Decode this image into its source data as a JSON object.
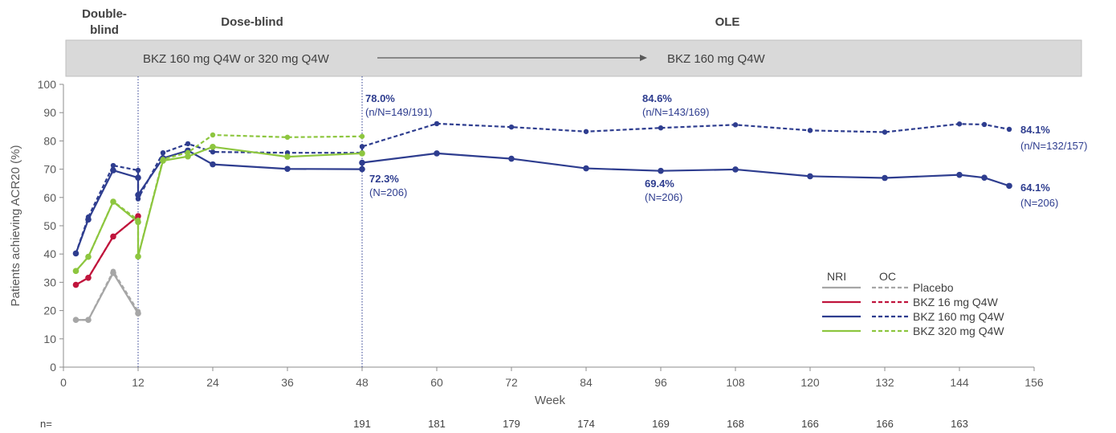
{
  "phases": {
    "double_blind_line1": "Double-",
    "double_blind_line2": "blind",
    "dose_blind": "Dose-blind",
    "ole": "OLE"
  },
  "banner": {
    "left": "BKZ 160 mg Q4W or 320 mg Q4W",
    "right": "BKZ 160 mg Q4W",
    "color": "#d9d9d9"
  },
  "annotations": {
    "oc_w48_pct": "78.0%",
    "oc_w48_n": "(n/N=149/191)",
    "nri_w48_pct": "72.3%",
    "nri_w48_n": "(N=206)",
    "oc_w96_pct": "84.6%",
    "oc_w96_n": "(n/N=143/169)",
    "nri_w96_pct": "69.4%",
    "nri_w96_n": "(N=206)",
    "oc_end_pct": "84.1%",
    "oc_end_n": "(n/N=132/157)",
    "nri_end_pct": "64.1%",
    "nri_end_n": "(N=206)"
  },
  "legend": {
    "nri_header": "NRI",
    "oc_header": "OC"
  },
  "n_row": {
    "label": "n=",
    "values": [
      {
        "week": 48,
        "n": "191"
      },
      {
        "week": 60,
        "n": "181"
      },
      {
        "week": 72,
        "n": "179"
      },
      {
        "week": 84,
        "n": "174"
      },
      {
        "week": 96,
        "n": "169"
      },
      {
        "week": 108,
        "n": "168"
      },
      {
        "week": 120,
        "n": "166"
      },
      {
        "week": 132,
        "n": "166"
      },
      {
        "week": 144,
        "n": "163"
      }
    ]
  },
  "chart_data": {
    "type": "line",
    "xlabel": "Week",
    "ylabel": "Patients achieving ACR20 (%)",
    "xlim": [
      0,
      156
    ],
    "ylim": [
      0,
      100
    ],
    "xticks": [
      0,
      12,
      24,
      36,
      48,
      60,
      72,
      84,
      96,
      108,
      120,
      132,
      144,
      156
    ],
    "yticks": [
      0,
      10,
      20,
      30,
      40,
      50,
      60,
      70,
      80,
      90,
      100
    ],
    "vlines": [
      12,
      48
    ],
    "grid": false,
    "legend_position": "bottom-right",
    "series": [
      {
        "name": "Placebo",
        "method": "NRI",
        "color": "#a6a6a6",
        "dash": false,
        "points": [
          [
            2,
            16.7
          ],
          [
            4,
            16.7
          ],
          [
            8,
            33.3
          ],
          [
            12,
            19.0
          ]
        ]
      },
      {
        "name": "Placebo",
        "method": "OC",
        "color": "#a6a6a6",
        "dash": true,
        "points": [
          [
            2,
            16.7
          ],
          [
            4,
            16.7
          ],
          [
            8,
            33.9
          ],
          [
            12,
            19.7
          ]
        ]
      },
      {
        "name": "BKZ 16 mg Q4W",
        "method": "NRI",
        "color": "#c0143c",
        "dash": false,
        "points": [
          [
            2,
            29.1
          ],
          [
            4,
            31.6
          ],
          [
            8,
            46.2
          ],
          [
            12,
            53.4
          ]
        ]
      },
      {
        "name": "BKZ 16 mg Q4W",
        "method": "OC",
        "color": "#c0143c",
        "dash": true,
        "points": [
          [
            2,
            29.1
          ],
          [
            4,
            31.6
          ],
          [
            8,
            46.2
          ],
          [
            12,
            53.4
          ]
        ]
      },
      {
        "name": "BKZ 160 mg Q4W",
        "method": "NRI",
        "color": "#2e3d8f",
        "dash": false,
        "points": [
          [
            2,
            40.2
          ],
          [
            4,
            52.2
          ],
          [
            8,
            69.6
          ],
          [
            12,
            67.0
          ],
          [
            12,
            60.9
          ],
          [
            16,
            73.9
          ],
          [
            20,
            76.6
          ],
          [
            24,
            71.7
          ],
          [
            36,
            70.1
          ],
          [
            48,
            70.0
          ],
          [
            48,
            72.3
          ],
          [
            60,
            75.6
          ],
          [
            72,
            73.7
          ],
          [
            84,
            70.3
          ],
          [
            96,
            69.4
          ],
          [
            108,
            69.9
          ],
          [
            120,
            67.5
          ],
          [
            132,
            66.9
          ],
          [
            144,
            68.0
          ],
          [
            148,
            67.0
          ],
          [
            152,
            64.1
          ]
        ]
      },
      {
        "name": "BKZ 160 mg Q4W",
        "method": "OC",
        "color": "#2e3d8f",
        "dash": true,
        "points": [
          [
            2,
            40.2
          ],
          [
            4,
            53.1
          ],
          [
            8,
            71.3
          ],
          [
            12,
            69.6
          ],
          [
            12,
            59.5
          ],
          [
            16,
            75.8
          ],
          [
            20,
            79.0
          ],
          [
            24,
            76.1
          ],
          [
            36,
            75.8
          ],
          [
            48,
            75.8
          ],
          [
            48,
            78.0
          ],
          [
            60,
            86.1
          ],
          [
            72,
            84.9
          ],
          [
            84,
            83.3
          ],
          [
            96,
            84.6
          ],
          [
            108,
            85.7
          ],
          [
            120,
            83.7
          ],
          [
            132,
            83.1
          ],
          [
            144,
            86.0
          ],
          [
            148,
            85.8
          ],
          [
            152,
            84.1
          ]
        ]
      },
      {
        "name": "BKZ 320 mg Q4W",
        "method": "NRI",
        "color": "#8dc63f",
        "dash": false,
        "points": [
          [
            2,
            34.0
          ],
          [
            4,
            39.0
          ],
          [
            8,
            58.5
          ],
          [
            12,
            51.3
          ],
          [
            12,
            39.1
          ],
          [
            16,
            73.0
          ],
          [
            20,
            74.5
          ],
          [
            24,
            77.9
          ],
          [
            36,
            74.4
          ],
          [
            48,
            75.6
          ]
        ]
      },
      {
        "name": "BKZ 320 mg Q4W",
        "method": "OC",
        "color": "#8dc63f",
        "dash": true,
        "points": [
          [
            2,
            34.0
          ],
          [
            4,
            39.0
          ],
          [
            8,
            58.6
          ],
          [
            12,
            52.0
          ],
          [
            12,
            39.1
          ],
          [
            16,
            73.5
          ],
          [
            20,
            75.9
          ],
          [
            24,
            82.1
          ],
          [
            36,
            81.3
          ],
          [
            48,
            81.6
          ]
        ]
      }
    ]
  }
}
